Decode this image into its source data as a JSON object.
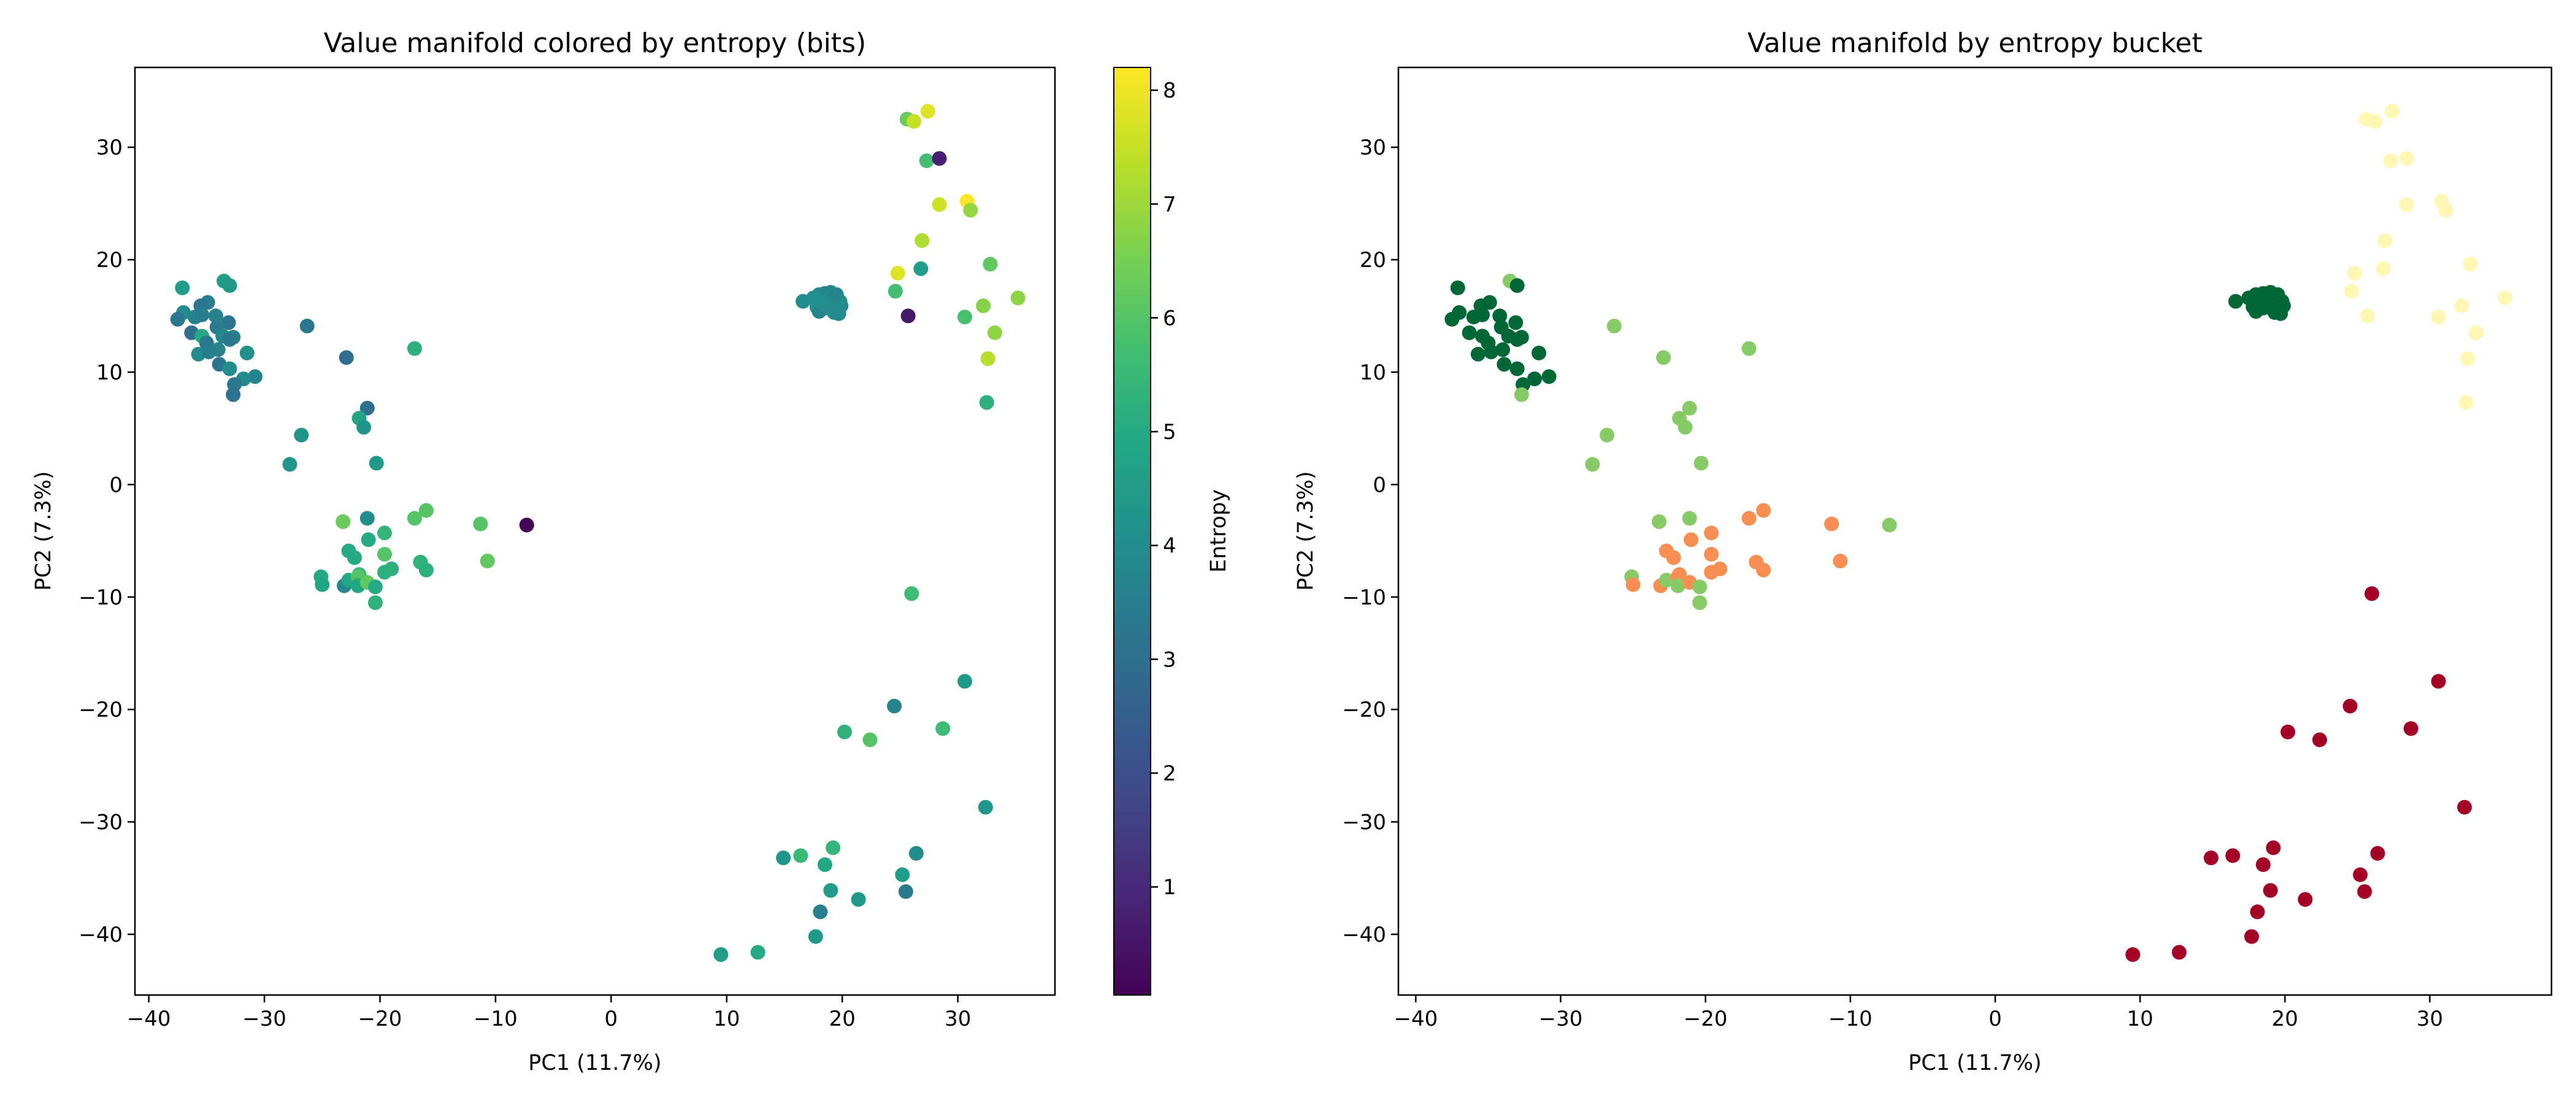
{
  "chart_data": [
    {
      "type": "scatter",
      "title": "Value manifold colored by entropy (bits)",
      "xlabel": "PC1 (11.7%)",
      "ylabel": "PC2 (7.3%)",
      "xlim": [
        -41.2,
        38.4
      ],
      "ylim": [
        -45.4,
        37.1
      ],
      "xticks": [
        -40,
        -30,
        -20,
        -10,
        0,
        10,
        20,
        30
      ],
      "yticks": [
        -40,
        -30,
        -20,
        -10,
        0,
        10,
        20,
        30
      ],
      "grid": false,
      "colormap": "viridis",
      "colorbar": {
        "label": "Entropy",
        "range": [
          0.05,
          8.2
        ],
        "ticks": [
          1,
          2,
          3,
          4,
          5,
          6,
          7,
          8
        ]
      },
      "point_fields": [
        "x",
        "y",
        "entropy"
      ]
    },
    {
      "type": "scatter",
      "title": "Value manifold by entropy bucket",
      "xlabel": "PC1 (11.7%)",
      "ylabel": "PC2 (7.3%)",
      "xlim": [
        -41.2,
        38.4
      ],
      "ylim": [
        -45.4,
        37.1
      ],
      "xticks": [
        -40,
        -30,
        -20,
        -10,
        0,
        10,
        20,
        30
      ],
      "yticks": [
        -40,
        -30,
        -20,
        -10,
        0,
        10,
        20,
        30
      ],
      "grid": false,
      "bucket_colors": [
        "#006837",
        "#86cb66",
        "#f98e52",
        "#a50026",
        "#fff7b3"
      ],
      "point_fields": [
        "x",
        "y",
        "bucket"
      ]
    }
  ],
  "points": [
    [
      -37.1,
      17.5,
      4.5,
      0
    ],
    [
      -33.5,
      18.1,
      4.6,
      1
    ],
    [
      -33.0,
      17.7,
      4.4,
      0
    ],
    [
      -34.9,
      16.2,
      3.5,
      0
    ],
    [
      -35.5,
      15.9,
      3.2,
      0
    ],
    [
      -37.0,
      15.3,
      4.0,
      0
    ],
    [
      -37.5,
      14.7,
      3.2,
      0
    ],
    [
      -36.0,
      14.9,
      3.7,
      0
    ],
    [
      -35.4,
      15.1,
      3.5,
      0
    ],
    [
      -34.2,
      15.0,
      3.6,
      0
    ],
    [
      -33.1,
      14.4,
      3.2,
      0
    ],
    [
      -34.1,
      14.0,
      3.4,
      0
    ],
    [
      -36.3,
      13.5,
      3.0,
      0
    ],
    [
      -35.4,
      13.2,
      5.0,
      0
    ],
    [
      -33.6,
      13.2,
      3.8,
      0
    ],
    [
      -32.7,
      13.1,
      3.6,
      0
    ],
    [
      -33.0,
      12.9,
      3.3,
      0
    ],
    [
      -35.0,
      12.6,
      3.3,
      0
    ],
    [
      -34.0,
      12.0,
      3.7,
      0
    ],
    [
      -35.7,
      11.6,
      3.9,
      0
    ],
    [
      -34.8,
      11.8,
      3.5,
      0
    ],
    [
      -31.5,
      11.7,
      4.1,
      0
    ],
    [
      -33.9,
      10.7,
      3.2,
      0
    ],
    [
      -33.0,
      10.3,
      4.0,
      0
    ],
    [
      -31.8,
      9.4,
      3.9,
      0
    ],
    [
      -30.8,
      9.6,
      3.8,
      0
    ],
    [
      -32.6,
      8.9,
      3.3,
      0
    ],
    [
      -32.7,
      8.0,
      3.1,
      1
    ],
    [
      -26.3,
      14.1,
      3.3,
      1
    ],
    [
      -22.9,
      11.3,
      3.0,
      1
    ],
    [
      -17.0,
      12.1,
      5.2,
      1
    ],
    [
      -21.1,
      6.8,
      3.0,
      1
    ],
    [
      -21.8,
      5.9,
      4.8,
      1
    ],
    [
      -21.4,
      5.1,
      4.3,
      1
    ],
    [
      -26.8,
      4.4,
      4.2,
      1
    ],
    [
      -27.8,
      1.8,
      4.3,
      1
    ],
    [
      -20.3,
      1.9,
      4.4,
      1
    ],
    [
      -23.2,
      -3.3,
      6.3,
      1
    ],
    [
      -21.1,
      -3.0,
      4.0,
      1
    ],
    [
      -17.0,
      -3.0,
      6.0,
      2
    ],
    [
      -16.0,
      -2.3,
      6.0,
      2
    ],
    [
      -11.3,
      -3.5,
      6.0,
      2
    ],
    [
      -7.3,
      -3.6,
      0.1,
      1
    ],
    [
      -19.6,
      -4.3,
      5.4,
      2
    ],
    [
      -21.0,
      -4.9,
      5.0,
      2
    ],
    [
      -22.7,
      -5.9,
      5.0,
      2
    ],
    [
      -22.2,
      -6.5,
      5.0,
      2
    ],
    [
      -19.6,
      -6.2,
      6.0,
      2
    ],
    [
      -16.5,
      -6.9,
      5.3,
      2
    ],
    [
      -10.7,
      -6.8,
      6.2,
      2
    ],
    [
      -16.0,
      -7.6,
      5.2,
      2
    ],
    [
      -19.0,
      -7.5,
      5.2,
      2
    ],
    [
      -19.6,
      -7.8,
      5.2,
      2
    ],
    [
      -25.1,
      -8.2,
      5.0,
      1
    ],
    [
      -25.0,
      -8.9,
      4.9,
      2
    ],
    [
      -23.1,
      -9.0,
      3.8,
      2
    ],
    [
      -22.7,
      -8.5,
      4.9,
      1
    ],
    [
      -21.8,
      -8.0,
      5.5,
      2
    ],
    [
      -21.9,
      -8.2,
      6.0,
      2
    ],
    [
      -21.9,
      -9.0,
      4.9,
      1
    ],
    [
      -21.1,
      -8.7,
      6.2,
      2
    ],
    [
      -20.4,
      -9.1,
      5.0,
      1
    ],
    [
      -20.4,
      -10.5,
      5.3,
      1
    ],
    [
      16.6,
      16.3,
      4.0,
      0
    ],
    [
      17.5,
      16.6,
      4.1,
      0
    ],
    [
      18.0,
      16.9,
      3.9,
      0
    ],
    [
      18.5,
      17.0,
      3.7,
      0
    ],
    [
      19.0,
      17.1,
      3.8,
      0
    ],
    [
      19.5,
      16.9,
      4.0,
      0
    ],
    [
      18.2,
      16.2,
      4.2,
      0
    ],
    [
      18.8,
      16.4,
      4.0,
      0
    ],
    [
      19.3,
      16.5,
      3.9,
      0
    ],
    [
      19.8,
      16.3,
      4.1,
      0
    ],
    [
      17.8,
      15.8,
      4.2,
      0
    ],
    [
      18.5,
      15.7,
      4.0,
      0
    ],
    [
      19.1,
      15.9,
      3.8,
      0
    ],
    [
      19.6,
      15.6,
      4.1,
      0
    ],
    [
      19.9,
      15.9,
      4.0,
      0
    ],
    [
      18.0,
      15.4,
      3.7,
      0
    ],
    [
      19.3,
      15.3,
      4.1,
      0
    ],
    [
      19.7,
      15.2,
      3.9,
      0
    ],
    [
      18.7,
      16.0,
      4.0,
      0
    ],
    [
      17.9,
      16.4,
      4.1,
      0
    ],
    [
      19.4,
      16.8,
      3.8,
      0
    ],
    [
      25.6,
      32.5,
      6.3,
      4
    ],
    [
      26.2,
      32.3,
      7.5,
      4
    ],
    [
      27.4,
      33.2,
      7.8,
      4
    ],
    [
      27.3,
      28.8,
      5.7,
      4
    ],
    [
      28.4,
      29.0,
      0.8,
      4
    ],
    [
      28.4,
      24.9,
      7.6,
      4
    ],
    [
      30.8,
      25.2,
      8.2,
      4
    ],
    [
      31.1,
      24.4,
      6.9,
      4
    ],
    [
      26.9,
      21.7,
      7.2,
      4
    ],
    [
      26.8,
      19.2,
      4.5,
      4
    ],
    [
      24.8,
      18.8,
      7.8,
      4
    ],
    [
      24.6,
      17.2,
      5.7,
      4
    ],
    [
      25.7,
      15.0,
      0.6,
      4
    ],
    [
      32.8,
      19.6,
      6.2,
      4
    ],
    [
      35.2,
      16.6,
      6.8,
      4
    ],
    [
      32.2,
      15.9,
      6.7,
      4
    ],
    [
      30.6,
      14.9,
      5.8,
      4
    ],
    [
      33.2,
      13.5,
      6.8,
      4
    ],
    [
      32.6,
      11.2,
      7.3,
      4
    ],
    [
      32.5,
      7.3,
      5.2,
      4
    ],
    [
      26.0,
      -9.7,
      5.6,
      3
    ],
    [
      30.6,
      -17.5,
      4.4,
      3
    ],
    [
      24.5,
      -19.7,
      3.7,
      3
    ],
    [
      20.2,
      -22.0,
      5.3,
      3
    ],
    [
      22.4,
      -22.7,
      6.0,
      3
    ],
    [
      28.7,
      -21.7,
      5.6,
      3
    ],
    [
      32.4,
      -28.7,
      4.3,
      3
    ],
    [
      19.2,
      -32.3,
      5.4,
      3
    ],
    [
      14.9,
      -33.2,
      4.3,
      3
    ],
    [
      16.4,
      -33.0,
      5.5,
      3
    ],
    [
      18.5,
      -33.8,
      4.9,
      3
    ],
    [
      26.4,
      -32.8,
      4.0,
      3
    ],
    [
      25.2,
      -34.7,
      4.5,
      3
    ],
    [
      25.5,
      -36.2,
      3.4,
      3
    ],
    [
      19.0,
      -36.1,
      4.5,
      3
    ],
    [
      21.4,
      -36.9,
      4.4,
      3
    ],
    [
      18.1,
      -38.0,
      3.5,
      3
    ],
    [
      17.7,
      -40.2,
      4.4,
      3
    ],
    [
      9.5,
      -41.8,
      4.6,
      3
    ],
    [
      12.7,
      -41.6,
      5.0,
      3
    ]
  ]
}
